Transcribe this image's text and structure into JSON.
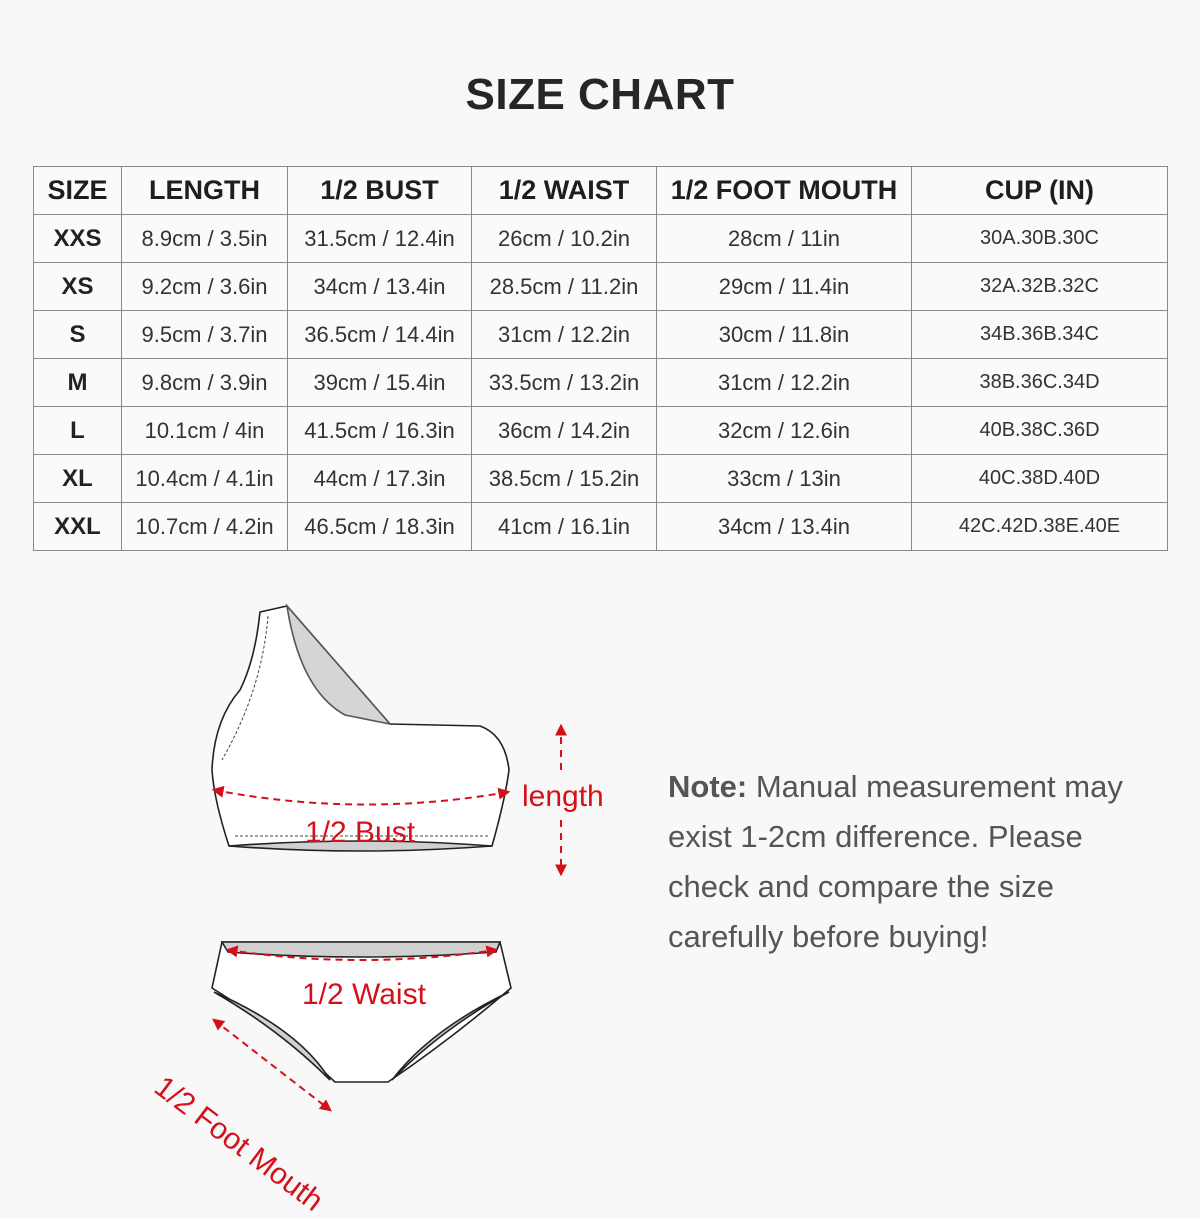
{
  "title": "SIZE CHART",
  "table": {
    "headers": [
      "SIZE",
      "LENGTH",
      "1/2 BUST",
      "1/2 WAIST",
      "1/2 FOOT MOUTH",
      "CUP (IN)"
    ],
    "rows": [
      [
        "XXS",
        "8.9cm / 3.5in",
        "31.5cm / 12.4in",
        "26cm / 10.2in",
        "28cm / 11in",
        "30A.30B.30C"
      ],
      [
        "XS",
        "9.2cm / 3.6in",
        "34cm / 13.4in",
        "28.5cm / 11.2in",
        "29cm / 11.4in",
        "32A.32B.32C"
      ],
      [
        "S",
        "9.5cm / 3.7in",
        "36.5cm / 14.4in",
        "31cm / 12.2in",
        "30cm / 11.8in",
        "34B.36B.34C"
      ],
      [
        "M",
        "9.8cm / 3.9in",
        "39cm / 15.4in",
        "33.5cm / 13.2in",
        "31cm / 12.2in",
        "38B.36C.34D"
      ],
      [
        "L",
        "10.1cm / 4in",
        "41.5cm / 16.3in",
        "36cm / 14.2in",
        "32cm / 12.6in",
        "40B.38C.36D"
      ],
      [
        "XL",
        "10.4cm / 4.1in",
        "44cm / 17.3in",
        "38.5cm / 15.2in",
        "33cm / 13in",
        "40C.38D.40D"
      ],
      [
        "XXL",
        "10.7cm / 4.2in",
        "46.5cm / 18.3in",
        "41cm / 16.1in",
        "34cm / 13.4in",
        "42C.42D.38E.40E"
      ]
    ]
  },
  "diagram": {
    "bust_label": "1/2 Bust",
    "length_label": "length",
    "waist_label": "1/2 Waist",
    "foot_mouth_label": "1/2 Foot Mouth",
    "accent_color": "#d4111a"
  },
  "note": {
    "label": "Note:",
    "text": "Manual measurement may exist 1-2cm difference. Please check and compare the size carefully before buying!"
  }
}
